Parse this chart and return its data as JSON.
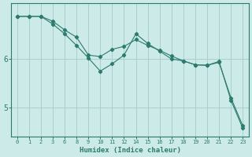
{
  "xlabel": "Humidex (Indice chaleur)",
  "background_color": "#cceae8",
  "line_color": "#2d7b6e",
  "grid_color": "#aacfcc",
  "xtick_labels": [
    "0",
    "1",
    "2",
    "3",
    "6",
    "8",
    "9",
    "10",
    "11",
    "12",
    "14",
    "15",
    "16",
    "17",
    "18",
    "19",
    "20",
    "21",
    "22",
    "23"
  ],
  "yticks": [
    5,
    6
  ],
  "ytick_labels": [
    "5",
    "6"
  ],
  "series1_y": [
    6.88,
    6.88,
    6.88,
    6.78,
    6.6,
    6.45,
    6.08,
    6.05,
    6.2,
    6.26,
    6.4,
    6.28,
    6.18,
    6.06,
    5.96,
    5.88,
    5.87,
    5.93,
    5.2,
    4.62
  ],
  "series2_y": [
    6.88,
    6.88,
    6.88,
    6.72,
    6.52,
    6.28,
    6.02,
    5.75,
    5.9,
    6.08,
    6.52,
    6.32,
    6.16,
    6.0,
    5.96,
    5.88,
    5.87,
    5.95,
    5.15,
    4.57
  ],
  "xlim": [
    -0.5,
    19.5
  ],
  "ylim": [
    4.4,
    7.15
  ]
}
